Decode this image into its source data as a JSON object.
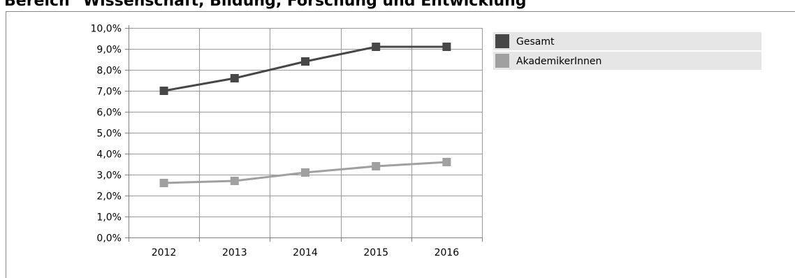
{
  "page": {
    "title": "Bereich \"Wissenschaft, Bildung, Forschung und Entwicklung\""
  },
  "chart_data": {
    "type": "line",
    "title": "",
    "xlabel": "",
    "ylabel": "",
    "categories": [
      "2012",
      "2013",
      "2014",
      "2015",
      "2016"
    ],
    "y_ticks": [
      "0,0%",
      "1,0%",
      "2,0%",
      "3,0%",
      "4,0%",
      "5,0%",
      "6,0%",
      "7,0%",
      "8,0%",
      "9,0%",
      "10,0%"
    ],
    "ylim": [
      0,
      10
    ],
    "unit": "%",
    "grid": true,
    "legend_position": "right",
    "series": [
      {
        "name": "Gesamt",
        "values": [
          7.0,
          7.6,
          8.4,
          9.1,
          9.1
        ],
        "color": "#474747"
      },
      {
        "name": "AkademikerInnen",
        "values": [
          2.6,
          2.7,
          3.1,
          3.4,
          3.6
        ],
        "color": "#a0a0a0"
      }
    ],
    "colors": {
      "grid": "#9a9a9a",
      "axis": "#808080",
      "legend_bg": "#e6e6e6"
    }
  }
}
